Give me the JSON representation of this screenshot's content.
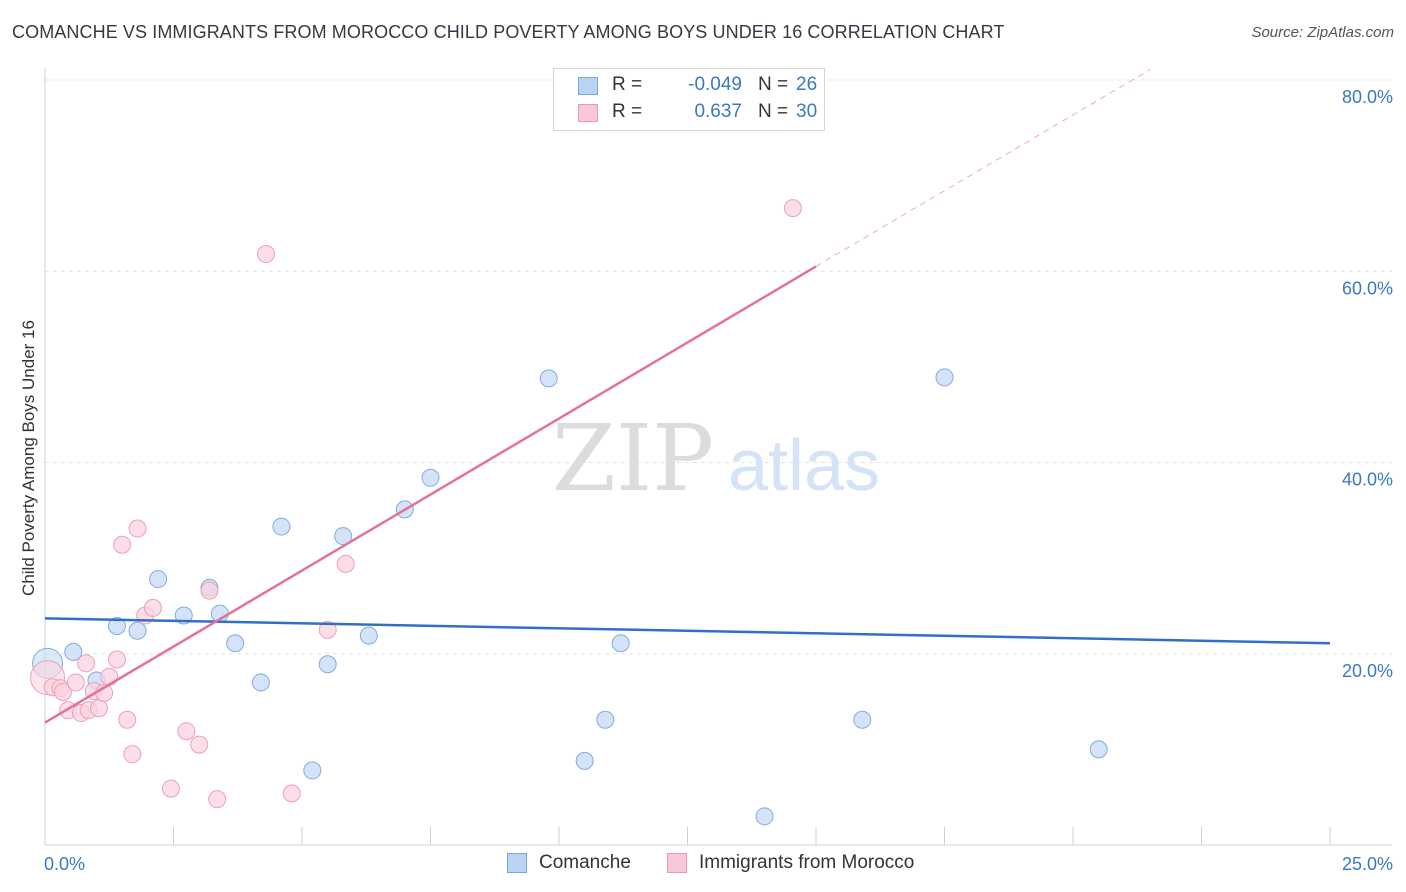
{
  "title": "COMANCHE VS IMMIGRANTS FROM MOROCCO CHILD POVERTY AMONG BOYS UNDER 16 CORRELATION CHART",
  "source": "Source: ZipAtlas.com",
  "watermark": {
    "zip": "ZIP",
    "atlas": "atlas"
  },
  "legend": {
    "r_label": "R =",
    "n_label": "N =",
    "series": [
      {
        "name": "Comanche",
        "r": "-0.049",
        "n": "26",
        "fill": "#b9d3f3",
        "stroke": "#7aa6de"
      },
      {
        "name": "Immigrants from Morocco",
        "r": "0.637",
        "n": "30",
        "fill": "#f9c8d6",
        "stroke": "#ec98b2"
      }
    ]
  },
  "colors": {
    "blue_point_fill": "#c5daf5",
    "blue_point_stroke": "#82ace1",
    "blue_line": "#2f6fc8",
    "pink_point_fill": "#fbd3df",
    "pink_point_stroke": "#eea0b8",
    "pink_line": "#e2729a",
    "axis_label": "#3a78c2",
    "grid": "#e2e2e2"
  },
  "chart_data": {
    "type": "scatter",
    "title": "COMANCHE VS IMMIGRANTS FROM MOROCCO CHILD POVERTY AMONG BOYS UNDER 16 CORRELATION CHART",
    "xlabel": "",
    "ylabel": "Child Poverty Among Boys Under 16",
    "xlim": [
      0,
      25
    ],
    "ylim": [
      0,
      80
    ],
    "x_tick_labels": [
      "0.0%",
      "25.0%"
    ],
    "y_ticks": [
      20,
      40,
      60,
      80
    ],
    "y_tick_labels": [
      "20.0%",
      "40.0%",
      "60.0%",
      "80.0%"
    ],
    "series": [
      {
        "name": "Comanche",
        "points": [
          [
            0.05,
            19.0
          ],
          [
            0.55,
            20.2
          ],
          [
            1.0,
            17.2
          ],
          [
            1.4,
            22.9
          ],
          [
            1.8,
            22.4
          ],
          [
            2.2,
            27.8
          ],
          [
            2.7,
            24.0
          ],
          [
            3.2,
            26.9
          ],
          [
            3.4,
            24.2
          ],
          [
            3.7,
            21.1
          ],
          [
            4.2,
            17.0
          ],
          [
            4.6,
            33.3
          ],
          [
            5.2,
            7.8
          ],
          [
            5.5,
            18.9
          ],
          [
            5.8,
            32.3
          ],
          [
            6.3,
            21.9
          ],
          [
            7.0,
            35.1
          ],
          [
            7.5,
            38.4
          ],
          [
            9.8,
            48.8
          ],
          [
            10.5,
            8.8
          ],
          [
            10.9,
            13.1
          ],
          [
            11.2,
            21.1
          ],
          [
            14.0,
            3.0
          ],
          [
            15.9,
            13.1
          ],
          [
            17.5,
            48.9
          ],
          [
            20.5,
            10.0
          ]
        ],
        "trend": {
          "x": [
            0,
            25
          ],
          "y": [
            23.7,
            21.1
          ]
        }
      },
      {
        "name": "Immigrants from Morocco",
        "points": [
          [
            0.05,
            17.5
          ],
          [
            0.15,
            16.5
          ],
          [
            0.3,
            16.4
          ],
          [
            0.35,
            16.0
          ],
          [
            0.45,
            14.1
          ],
          [
            0.6,
            17.0
          ],
          [
            0.7,
            13.8
          ],
          [
            0.8,
            19.0
          ],
          [
            0.85,
            14.1
          ],
          [
            0.95,
            16.1
          ],
          [
            1.05,
            14.3
          ],
          [
            1.15,
            15.9
          ],
          [
            1.25,
            17.6
          ],
          [
            1.4,
            19.4
          ],
          [
            1.5,
            31.4
          ],
          [
            1.6,
            13.1
          ],
          [
            1.7,
            9.5
          ],
          [
            1.8,
            33.1
          ],
          [
            1.95,
            24.0
          ],
          [
            2.1,
            24.8
          ],
          [
            2.45,
            5.9
          ],
          [
            2.75,
            11.9
          ],
          [
            3.0,
            10.5
          ],
          [
            3.2,
            26.6
          ],
          [
            3.35,
            4.8
          ],
          [
            4.3,
            61.8
          ],
          [
            4.8,
            5.4
          ],
          [
            5.5,
            22.5
          ],
          [
            5.85,
            29.4
          ],
          [
            14.55,
            66.6
          ]
        ],
        "trend": {
          "x": [
            0,
            15
          ],
          "y": [
            12.8,
            60.5
          ]
        },
        "trend_extension": {
          "x": [
            15,
            21.5
          ],
          "y": [
            60.5,
            81.1
          ]
        }
      }
    ]
  }
}
